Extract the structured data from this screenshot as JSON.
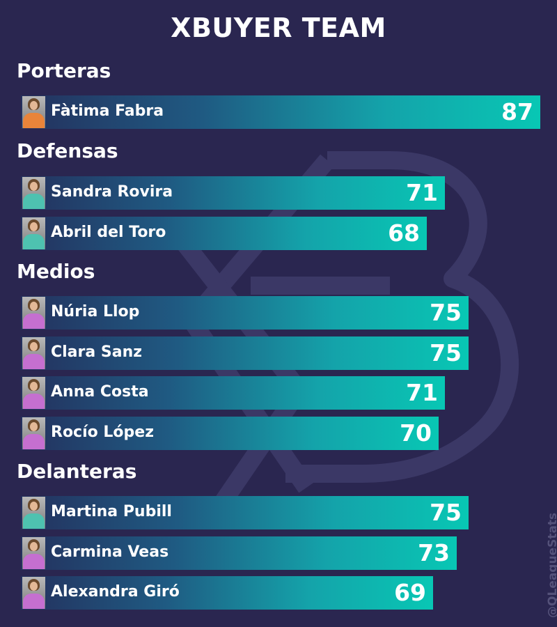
{
  "chart_data": {
    "type": "bar",
    "orientation": "horizontal",
    "title": "XBUYER TEAM",
    "credit": "@QLeagueStats",
    "max_value": 87,
    "colors": {
      "background": "#2a2650",
      "bar_start": "#24315e",
      "bar_end": "#08c7b4",
      "text": "#ffffff",
      "shirt_orange": "#e9843a",
      "shirt_teal": "#4ec2b0",
      "shirt_pink": "#c56fd0"
    },
    "groups": [
      {
        "label": "Porteras",
        "players": [
          {
            "name": "Fàtima Fabra",
            "value": 87,
            "shirt": "shirt_orange"
          }
        ]
      },
      {
        "label": "Defensas",
        "players": [
          {
            "name": "Sandra Rovira",
            "value": 71,
            "shirt": "shirt_teal"
          },
          {
            "name": "Abril del Toro",
            "value": 68,
            "shirt": "shirt_teal"
          }
        ]
      },
      {
        "label": "Medios",
        "players": [
          {
            "name": "Núria Llop",
            "value": 75,
            "shirt": "shirt_pink"
          },
          {
            "name": "Clara Sanz",
            "value": 75,
            "shirt": "shirt_pink"
          },
          {
            "name": "Anna Costa",
            "value": 71,
            "shirt": "shirt_pink"
          },
          {
            "name": "Rocío López",
            "value": 70,
            "shirt": "shirt_pink"
          }
        ]
      },
      {
        "label": "Delanteras",
        "players": [
          {
            "name": "Martina Pubill",
            "value": 75,
            "shirt": "shirt_teal"
          },
          {
            "name": "Carmina Veas",
            "value": 73,
            "shirt": "shirt_pink"
          },
          {
            "name": "Alexandra Giró",
            "value": 69,
            "shirt": "shirt_pink"
          }
        ]
      }
    ]
  }
}
